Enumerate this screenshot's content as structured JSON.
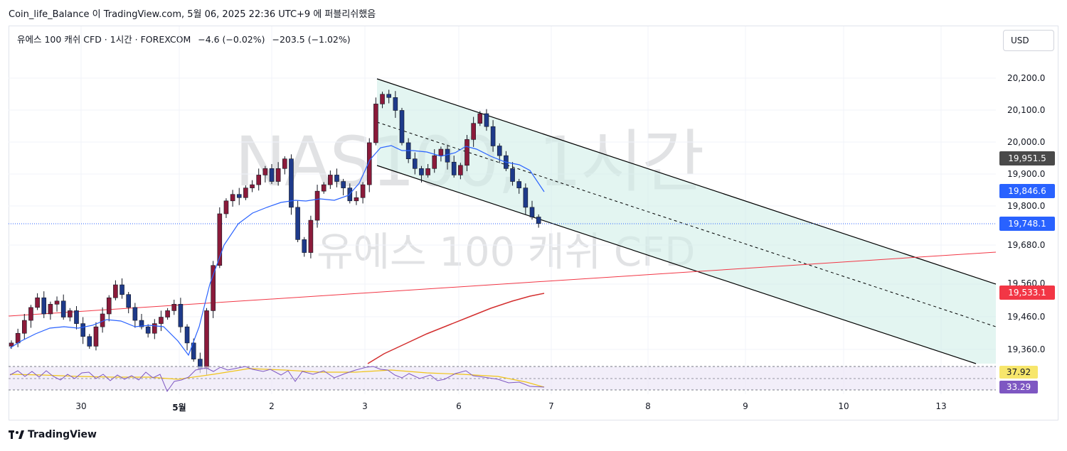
{
  "caption": "Coin_life_Balance 이 TradingView.com, 5월 06, 2025 22:36 UTC+9 에 퍼블리쉬했음",
  "legend": {
    "symbol": "유에스 100 캐쉬 CFD · 1시간 · FOREXCOM",
    "change": "−4.6 (−0.02%)",
    "change2": "−203.5 (−1.02%)"
  },
  "currency": "USD",
  "watermark": {
    "main": "NAS100, 1시간",
    "sub": "유에스 100 캐쉬 CFD"
  },
  "price_axis": [
    "20,200.0",
    "20,100.0",
    "20,000.0",
    "19,900.0",
    "19,800.0",
    "19,680.0",
    "19,560.0",
    "19,460.0",
    "19,360.0"
  ],
  "tags": {
    "ma_slow": "19,951.5",
    "ma_fast": "19,846.6",
    "last_price": "19,748.1",
    "trend_line": "19,533.1",
    "rsi_ma": "37.92",
    "rsi": "33.29"
  },
  "time_axis": [
    "30",
    "5월",
    "2",
    "3",
    "6",
    "7",
    "8",
    "9",
    "10",
    "13"
  ],
  "brand": "TradingView",
  "colors": {
    "up": "#ffffff",
    "down": "#1e3a8a",
    "body_up": "#8b1a3a",
    "ma_fast": "#2962ff",
    "ma_slow": "#d32f2f",
    "channel": "#d1efe8",
    "rsi": "#7e57c2",
    "rsi_ma": "#f0c419"
  },
  "chart_data": {
    "type": "candlestick",
    "closes": [
      19380,
      19410,
      19450,
      19490,
      19520,
      19470,
      19500,
      19510,
      19460,
      19480,
      19440,
      19400,
      19370,
      19430,
      19470,
      19520,
      19560,
      19530,
      19490,
      19450,
      19430,
      19410,
      19440,
      19460,
      19480,
      19500,
      19430,
      19380,
      19330,
      19300,
      19480,
      19620,
      19780,
      19820,
      19840,
      19830,
      19860,
      19870,
      19900,
      19920,
      19880,
      19920,
      19950,
      19800,
      19700,
      19660,
      19760,
      19850,
      19870,
      19900,
      19880,
      19860,
      19820,
      19830,
      19870,
      20000,
      20120,
      20150,
      20140,
      20100,
      20000,
      19950,
      19920,
      19900,
      19920,
      19960,
      19980,
      19940,
      19900,
      19930,
      20010,
      20060,
      20090,
      20050,
      19990,
      19960,
      19920,
      19880,
      19860,
      19800,
      19770,
      19750
    ],
    "ma_fast_label": "19,846.6",
    "ma_slow_label": "19,951.5"
  }
}
